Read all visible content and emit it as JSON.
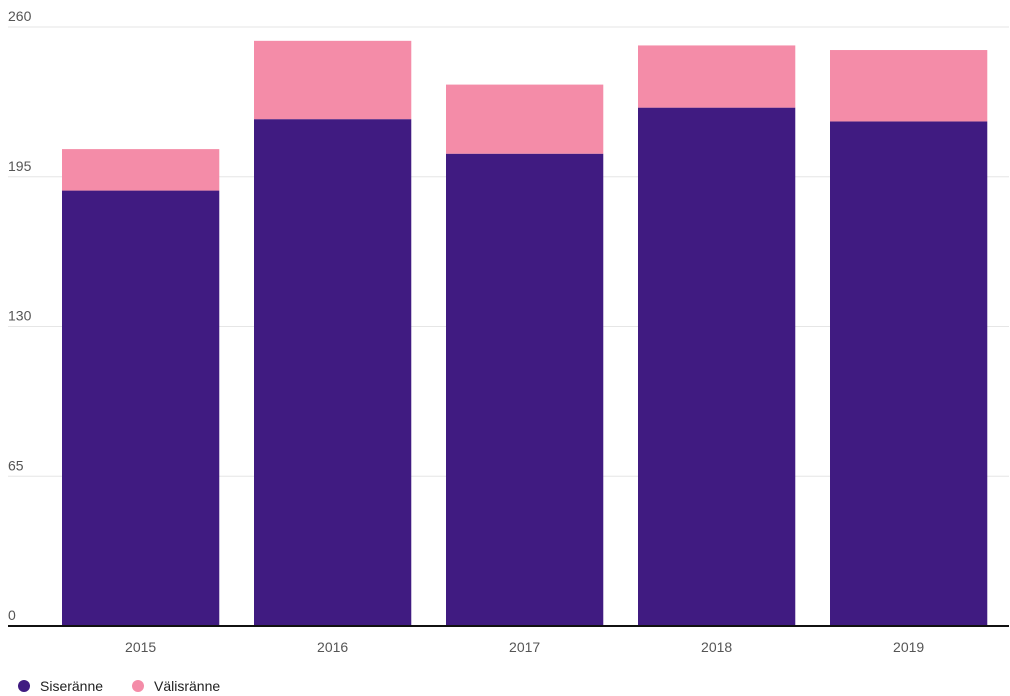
{
  "chart_data": {
    "type": "bar",
    "stacked": true,
    "categories": [
      "2015",
      "2016",
      "2017",
      "2018",
      "2019"
    ],
    "series": [
      {
        "name": "Siseränne",
        "color": "#401b81",
        "values": [
          189,
          220,
          205,
          225,
          219
        ]
      },
      {
        "name": "Välisränne",
        "color": "#f48ca8",
        "values": [
          18,
          34,
          30,
          27,
          31
        ]
      }
    ],
    "title": "",
    "xlabel": "",
    "ylabel": "",
    "ylim": [
      0,
      260
    ],
    "yticks": [
      "0",
      "65",
      "130",
      "195",
      "260"
    ],
    "grid": true,
    "legend_position": "bottom-left"
  }
}
